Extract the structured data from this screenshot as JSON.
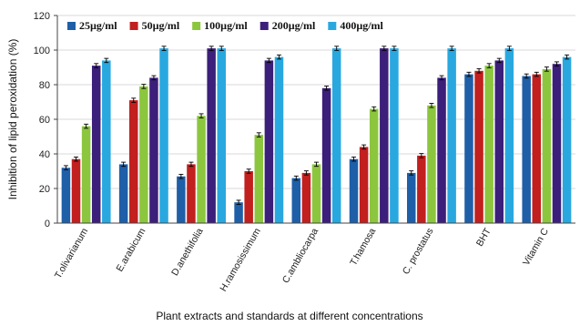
{
  "chart_data": {
    "type": "bar",
    "title": "",
    "xlabel": "Plant extracts and standards at different concentrations",
    "ylabel": "Inhibition of lipid peroxidation (%)",
    "ylim": [
      0,
      120
    ],
    "yticks": [
      0,
      20,
      40,
      60,
      80,
      100,
      120
    ],
    "grid": true,
    "legend_position": "top",
    "categories": [
      "T.olivarianum",
      "E.arabicum",
      "D.anethifolia",
      "H.ramosissimum",
      "C.ambliocarpa",
      "T.hamosa",
      "C. prostatus",
      "BHT",
      "Vitamin C"
    ],
    "series": [
      {
        "name": "25µg/ml",
        "color": "#1f5fa8",
        "values": [
          32,
          34,
          27,
          12,
          26,
          37,
          29,
          86,
          85
        ]
      },
      {
        "name": "50µg/ml",
        "color": "#c21f1f",
        "values": [
          37,
          71,
          34,
          30,
          29,
          44,
          39,
          88,
          86
        ]
      },
      {
        "name": "100µg/ml",
        "color": "#8cc63f",
        "values": [
          56,
          79,
          62,
          51,
          34,
          66,
          68,
          91,
          89
        ]
      },
      {
        "name": "200µg/ml",
        "color": "#3b1f7a",
        "values": [
          91,
          84,
          101,
          94,
          78,
          101,
          84,
          94,
          92
        ]
      },
      {
        "name": "400µg/ml",
        "color": "#29a8e0",
        "values": [
          94,
          101,
          101,
          96,
          101,
          101,
          101,
          101,
          96
        ]
      }
    ]
  }
}
